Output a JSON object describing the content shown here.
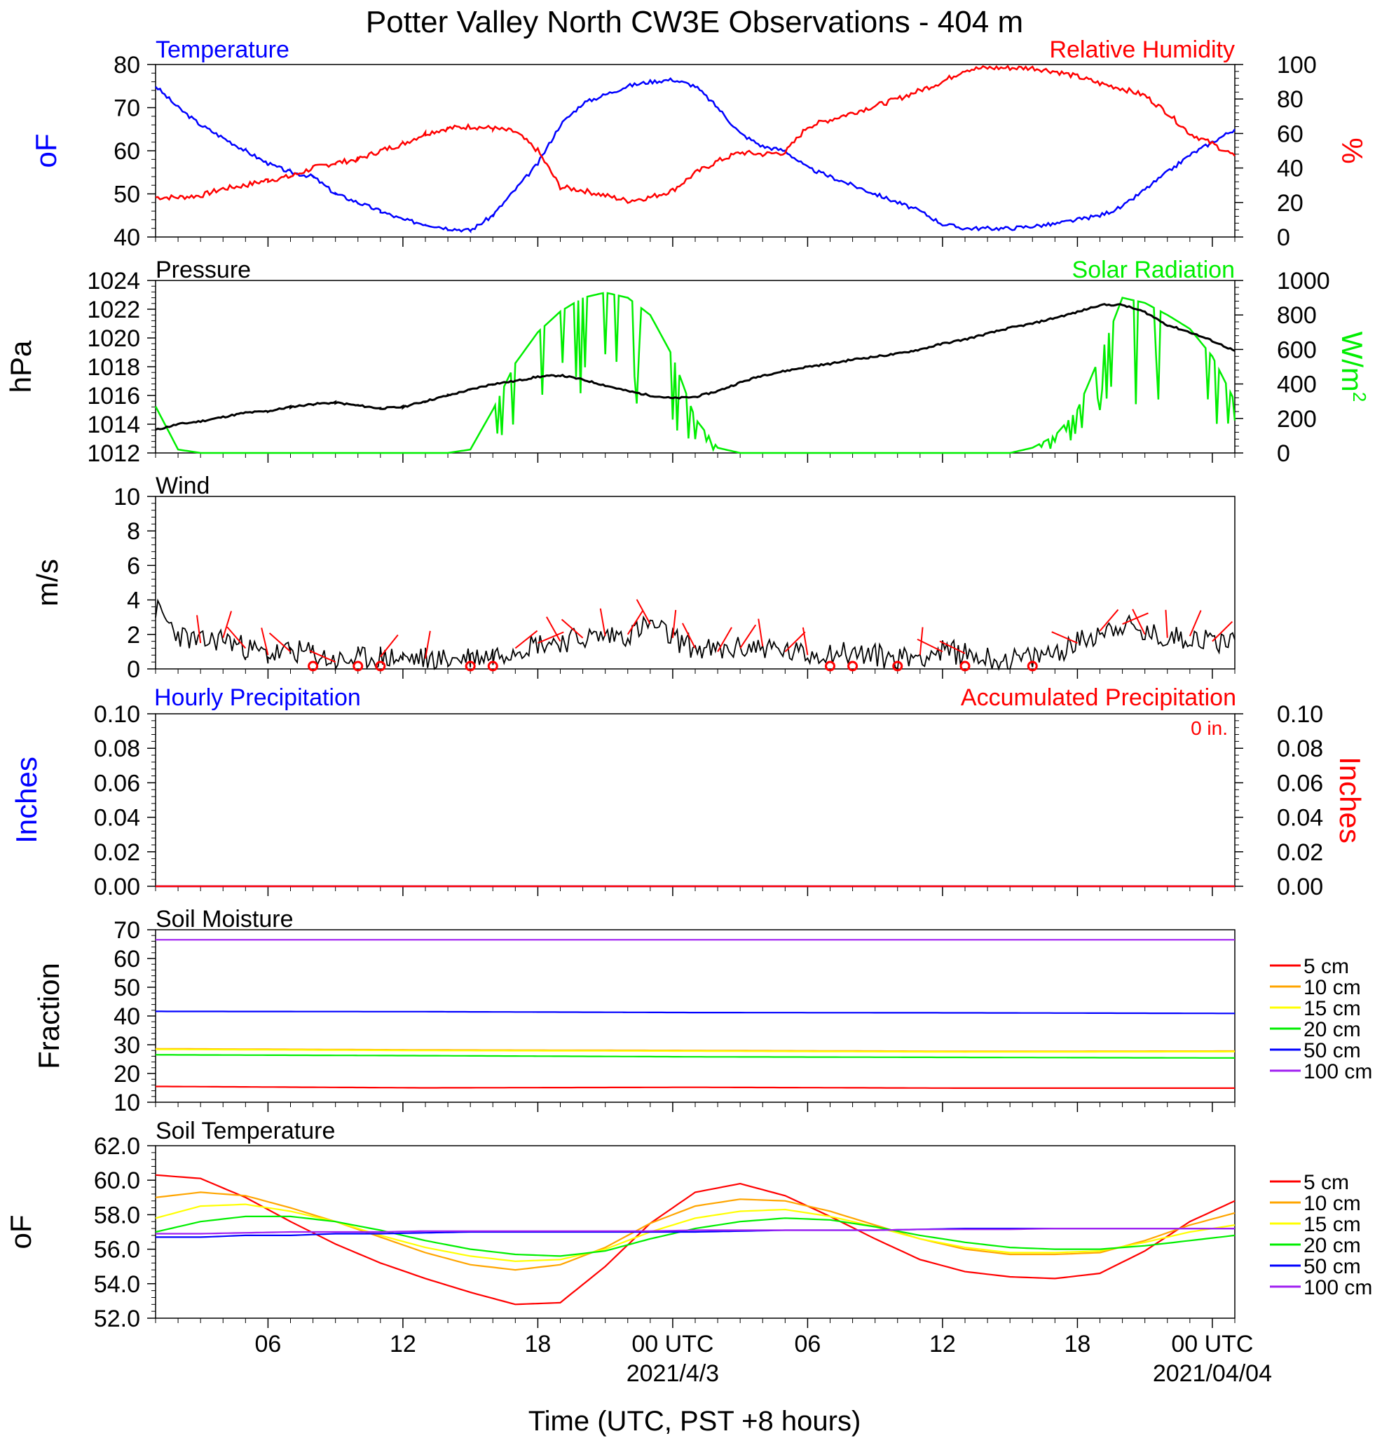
{
  "figure": {
    "title": "Potter Valley North CW3E Observations - 404 m",
    "xlabel": "Time (UTC, PST +8 hours)",
    "x_ticks": [
      "06",
      "12",
      "18",
      "00 UTC",
      "06",
      "12",
      "18",
      "00 UTC"
    ],
    "x_tick_hours": [
      6,
      12,
      18,
      24,
      30,
      36,
      42,
      48
    ],
    "date_labels": [
      "2021/4/3",
      "2021/04/04"
    ],
    "date_label_hours": [
      24,
      48
    ],
    "x_range_hours": [
      1,
      49
    ]
  },
  "colors": {
    "blue": "#0000ff",
    "red": "#ff0000",
    "green": "#00ee00",
    "black": "#000000",
    "soil_5": "#ff0000",
    "soil_10": "#ffa500",
    "soil_15": "#ffff00",
    "soil_20": "#00ee00",
    "soil_50": "#0000ff",
    "soil_100": "#a020f0"
  },
  "panels": {
    "temp_rh": {
      "left_label": "Temperature",
      "right_label": "Relative Humidity",
      "left_unit": "oF",
      "right_unit": "%",
      "left_ticks": [
        "80",
        "70",
        "60",
        "50",
        "40"
      ],
      "right_ticks": [
        "100",
        "80",
        "60",
        "40",
        "20",
        "0"
      ]
    },
    "pressure_solar": {
      "left_label": "Pressure",
      "right_label": "Solar Radiation",
      "left_unit": "hPa",
      "right_unit": "W/m",
      "right_unit_sup": "2",
      "left_ticks": [
        "1024",
        "1022",
        "1020",
        "1018",
        "1016",
        "1014",
        "1012"
      ],
      "right_ticks": [
        "1000",
        "800",
        "600",
        "400",
        "200",
        "0"
      ]
    },
    "wind": {
      "left_label": "Wind",
      "left_unit": "m/s",
      "left_ticks": [
        "10",
        "8",
        "6",
        "4",
        "2",
        "0"
      ]
    },
    "precip": {
      "left_label": "Hourly Precipitation",
      "right_label": "Accumulated Precipitation",
      "total_label": "0 in.",
      "left_unit": "Inches",
      "right_unit": "Inches",
      "left_ticks": [
        "0.10",
        "0.08",
        "0.06",
        "0.04",
        "0.02",
        "0.00"
      ],
      "right_ticks": [
        "0.10",
        "0.08",
        "0.06",
        "0.04",
        "0.02",
        "0.00"
      ]
    },
    "soil_moisture": {
      "left_label": "Soil Moisture",
      "left_unit": "Fraction",
      "left_ticks": [
        "70",
        "60",
        "50",
        "40",
        "30",
        "20",
        "10"
      ],
      "legend": [
        "5 cm",
        "10 cm",
        "15 cm",
        "20 cm",
        "50 cm",
        "100 cm"
      ]
    },
    "soil_temp": {
      "left_label": "Soil Temperature",
      "left_unit": "oF",
      "left_ticks": [
        "62.0",
        "60.0",
        "58.0",
        "56.0",
        "54.0",
        "52.0"
      ],
      "legend": [
        "5 cm",
        "10 cm",
        "15 cm",
        "20 cm",
        "50 cm",
        "100 cm"
      ]
    }
  },
  "chart_data": [
    {
      "type": "line",
      "title": "Temperature / Relative Humidity",
      "x": [
        1,
        2,
        3,
        4,
        5,
        6,
        7,
        8,
        9,
        10,
        11,
        12,
        13,
        14,
        15,
        16,
        17,
        18,
        19,
        20,
        21,
        22,
        23,
        24,
        25,
        26,
        27,
        28,
        29,
        30,
        31,
        32,
        33,
        34,
        35,
        36,
        37,
        38,
        39,
        40,
        41,
        42,
        43,
        44,
        45,
        46,
        47,
        48,
        49
      ],
      "ylim": [
        40,
        80
      ],
      "y2lim": [
        0,
        100
      ],
      "series": [
        {
          "name": "Temperature",
          "axis": "left",
          "values": [
            75,
            70,
            66,
            63,
            60,
            57,
            55,
            54,
            50,
            48,
            46,
            44,
            43,
            42,
            41.5,
            45,
            51,
            57,
            66,
            71,
            73,
            75,
            76,
            76.5,
            75,
            70,
            64,
            61,
            60,
            56,
            54,
            52,
            50,
            48,
            46,
            43,
            42,
            42,
            42,
            42.5,
            43,
            44,
            45,
            47,
            51,
            55,
            59,
            62,
            65
          ]
        },
        {
          "name": "Relative Humidity",
          "axis": "right",
          "values": [
            23,
            23,
            24,
            28,
            30,
            33,
            35,
            40,
            43,
            45,
            50,
            54,
            60,
            63,
            64,
            63,
            61,
            50,
            29,
            27,
            24,
            21,
            23,
            27,
            37,
            44,
            49,
            48,
            49,
            64,
            68,
            72,
            76,
            80,
            85,
            90,
            97,
            98,
            98,
            98,
            96,
            93,
            89,
            86,
            82,
            72,
            60,
            54,
            47
          ]
        }
      ]
    },
    {
      "type": "line",
      "title": "Pressure / Solar Radiation",
      "x": [
        1,
        2,
        3,
        4,
        5,
        6,
        7,
        8,
        9,
        10,
        11,
        12,
        13,
        14,
        15,
        16,
        17,
        18,
        19,
        20,
        21,
        22,
        23,
        24,
        25,
        26,
        27,
        28,
        29,
        30,
        31,
        32,
        33,
        34,
        35,
        36,
        37,
        38,
        39,
        40,
        41,
        42,
        43,
        44,
        45,
        46,
        47,
        48,
        49
      ],
      "ylim": [
        1012,
        1024
      ],
      "y2lim": [
        0,
        1000
      ],
      "series": [
        {
          "name": "Pressure",
          "axis": "left",
          "values": [
            1013.6,
            1014.0,
            1014.2,
            1014.5,
            1014.8,
            1014.9,
            1015.2,
            1015.4,
            1015.5,
            1015.3,
            1015.1,
            1015.2,
            1015.6,
            1016.0,
            1016.4,
            1016.8,
            1017.0,
            1017.3,
            1017.4,
            1017.1,
            1016.7,
            1016.3,
            1016.0,
            1015.8,
            1015.9,
            1016.3,
            1016.9,
            1017.4,
            1017.7,
            1018.0,
            1018.2,
            1018.5,
            1018.7,
            1018.9,
            1019.2,
            1019.6,
            1019.9,
            1020.3,
            1020.7,
            1021.0,
            1021.4,
            1021.8,
            1022.3,
            1022.3,
            1021.8,
            1020.9,
            1020.4,
            1019.8,
            1019.1
          ]
        },
        {
          "name": "Solar Radiation",
          "axis": "right",
          "values": [
            270,
            20,
            0,
            0,
            0,
            0,
            0,
            0,
            0,
            0,
            0,
            0,
            0,
            0,
            20,
            250,
            520,
            700,
            820,
            900,
            930,
            900,
            800,
            560,
            200,
            30,
            0,
            0,
            0,
            0,
            0,
            0,
            0,
            0,
            0,
            0,
            0,
            0,
            0,
            30,
            100,
            250,
            560,
            900,
            870,
            800,
            720,
            560,
            300
          ]
        }
      ]
    },
    {
      "type": "line",
      "title": "Wind",
      "x": [
        1,
        2,
        3,
        4,
        5,
        6,
        7,
        8,
        9,
        10,
        11,
        12,
        13,
        14,
        15,
        16,
        17,
        18,
        19,
        20,
        21,
        22,
        23,
        24,
        25,
        26,
        27,
        28,
        29,
        30,
        31,
        32,
        33,
        34,
        35,
        36,
        37,
        38,
        39,
        40,
        41,
        42,
        43,
        44,
        45,
        46,
        47,
        48,
        49
      ],
      "ylim": [
        0,
        10
      ],
      "series": [
        {
          "name": "Wind speed",
          "values": [
            3.5,
            2.0,
            1.5,
            1.8,
            1.2,
            0.8,
            1.0,
            0.9,
            0.4,
            0.6,
            0.7,
            0.6,
            0.6,
            0.5,
            0.7,
            0.8,
            1.2,
            1.5,
            1.6,
            1.8,
            1.9,
            2.0,
            2.6,
            1.8,
            1.2,
            1.0,
            1.2,
            1.3,
            1.0,
            0.8,
            1.0,
            0.9,
            0.8,
            0.6,
            0.8,
            1.0,
            0.9,
            0.6,
            0.5,
            0.6,
            1.0,
            1.5,
            2.2,
            2.6,
            2.0,
            1.8,
            1.9,
            1.6,
            1.7
          ]
        }
      ],
      "calm_marker_hours": [
        8,
        10,
        11,
        15,
        16,
        31,
        32,
        34,
        37,
        40
      ],
      "barb_hours": [
        3,
        4,
        5,
        6,
        7,
        9,
        11,
        13,
        17,
        18,
        19,
        20,
        21,
        22,
        23,
        24,
        25,
        26,
        27,
        28,
        29,
        30,
        35,
        36,
        37,
        42,
        43,
        44,
        45,
        46,
        47,
        48
      ]
    },
    {
      "type": "line",
      "title": "Precipitation",
      "x": [
        1,
        49
      ],
      "ylim": [
        0,
        0.1
      ],
      "series": [
        {
          "name": "Hourly Precipitation",
          "values": [
            0,
            0
          ]
        },
        {
          "name": "Accumulated Precipitation",
          "values": [
            0,
            0
          ]
        }
      ]
    },
    {
      "type": "line",
      "title": "Soil Moisture",
      "x": [
        1,
        13,
        25,
        37,
        49
      ],
      "ylim": [
        10,
        70
      ],
      "series": [
        {
          "name": "5 cm",
          "values": [
            15.5,
            15.0,
            15.2,
            14.9,
            14.9
          ]
        },
        {
          "name": "10 cm",
          "values": [
            28.6,
            28.2,
            28.0,
            27.7,
            27.8
          ]
        },
        {
          "name": "15 cm",
          "values": [
            28.4,
            28.0,
            27.8,
            27.5,
            27.6
          ]
        },
        {
          "name": "20 cm",
          "values": [
            26.5,
            26.2,
            25.8,
            25.6,
            25.4
          ]
        },
        {
          "name": "50 cm",
          "values": [
            41.6,
            41.5,
            41.2,
            41.1,
            40.9
          ]
        },
        {
          "name": "100 cm",
          "values": [
            66.5,
            66.5,
            66.5,
            66.5,
            66.5
          ]
        }
      ]
    },
    {
      "type": "line",
      "title": "Soil Temperature",
      "x": [
        1,
        3,
        5,
        7,
        9,
        11,
        13,
        15,
        17,
        19,
        21,
        23,
        25,
        27,
        29,
        31,
        33,
        35,
        37,
        39,
        41,
        43,
        45,
        47,
        49
      ],
      "ylim": [
        52,
        62
      ],
      "series": [
        {
          "name": "5 cm",
          "values": [
            60.3,
            60.1,
            59.0,
            57.6,
            56.3,
            55.2,
            54.3,
            53.5,
            52.8,
            52.9,
            55.0,
            57.5,
            59.3,
            59.8,
            59.1,
            57.9,
            56.6,
            55.4,
            54.7,
            54.4,
            54.3,
            54.6,
            55.9,
            57.6,
            58.8
          ]
        },
        {
          "name": "10 cm",
          "values": [
            59.0,
            59.3,
            59.1,
            58.4,
            57.6,
            56.7,
            55.8,
            55.1,
            54.8,
            55.1,
            56.1,
            57.5,
            58.5,
            58.9,
            58.8,
            58.2,
            57.4,
            56.6,
            56.0,
            55.7,
            55.7,
            55.8,
            56.5,
            57.4,
            58.1
          ]
        },
        {
          "name": "15 cm",
          "values": [
            57.8,
            58.5,
            58.6,
            58.2,
            57.6,
            56.8,
            56.1,
            55.6,
            55.3,
            55.4,
            56.0,
            57.0,
            57.8,
            58.2,
            58.3,
            57.9,
            57.3,
            56.6,
            56.1,
            55.8,
            55.8,
            55.9,
            56.4,
            57.0,
            57.4
          ]
        },
        {
          "name": "20 cm",
          "values": [
            57.0,
            57.6,
            57.9,
            57.9,
            57.6,
            57.1,
            56.5,
            56.0,
            55.7,
            55.6,
            55.9,
            56.6,
            57.2,
            57.6,
            57.8,
            57.7,
            57.3,
            56.8,
            56.4,
            56.1,
            56.0,
            56.0,
            56.2,
            56.5,
            56.8
          ]
        },
        {
          "name": "50 cm",
          "values": [
            56.7,
            56.7,
            56.8,
            56.8,
            56.9,
            56.9,
            56.95,
            57.0,
            57.0,
            57.0,
            57.0,
            57.0,
            57.0,
            57.05,
            57.1,
            57.1,
            57.1,
            57.15,
            57.2,
            57.2,
            57.2,
            57.2,
            57.2,
            57.2,
            57.2
          ]
        },
        {
          "name": "100 cm",
          "values": [
            56.9,
            56.9,
            56.95,
            57.0,
            57.0,
            57.0,
            57.05,
            57.05,
            57.05,
            57.05,
            57.05,
            57.05,
            57.1,
            57.1,
            57.1,
            57.1,
            57.1,
            57.15,
            57.15,
            57.15,
            57.2,
            57.2,
            57.2,
            57.2,
            57.2
          ]
        }
      ]
    }
  ]
}
